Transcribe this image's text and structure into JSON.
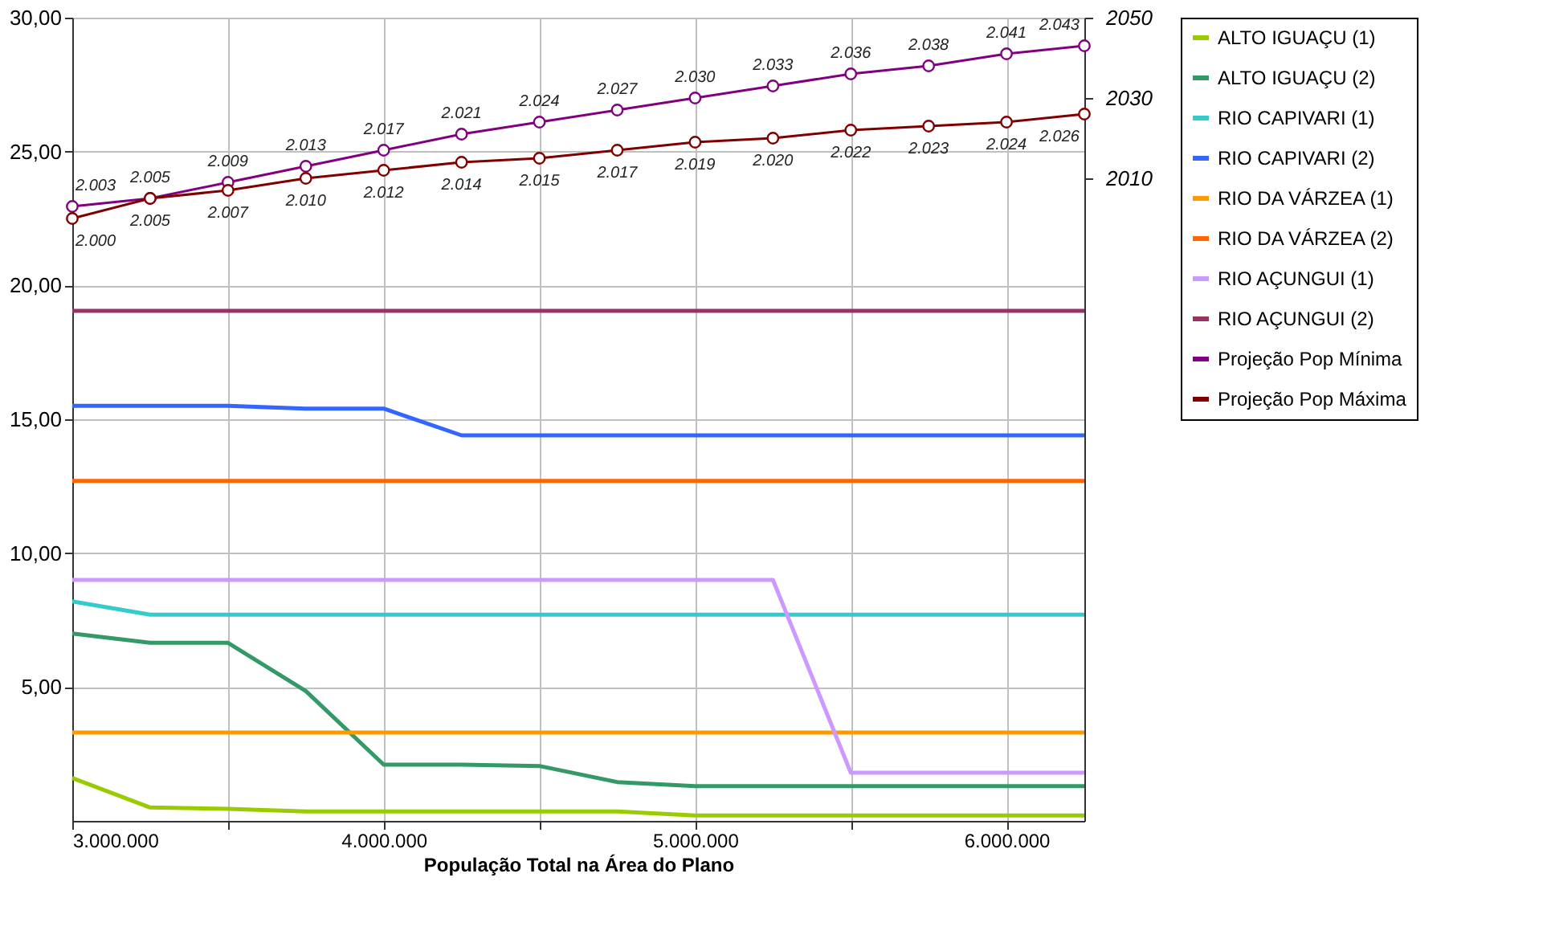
{
  "chart_data": {
    "type": "line",
    "xlabel": "População Total na Área do Plano",
    "x": [
      3000000,
      3250000,
      3500000,
      3750000,
      4000000,
      4250000,
      4500000,
      4750000,
      5000000,
      5250000,
      5500000,
      5750000,
      6000000,
      6250000
    ],
    "xlim": [
      3000000,
      6250000
    ],
    "xticks": [
      {
        "value": 3000000,
        "label": "3.000.000"
      },
      {
        "value": 3500000,
        "label": null
      },
      {
        "value": 4000000,
        "label": "4.000.000"
      },
      {
        "value": 4500000,
        "label": null
      },
      {
        "value": 5000000,
        "label": "5.000.000"
      },
      {
        "value": 5500000,
        "label": null
      },
      {
        "value": 6000000,
        "label": "6.000.000"
      }
    ],
    "ylim": [
      0,
      30
    ],
    "yticks": [
      {
        "value": 5,
        "label": "5,00"
      },
      {
        "value": 10,
        "label": "10,00"
      },
      {
        "value": 15,
        "label": "15,00"
      },
      {
        "value": 20,
        "label": "20,00"
      },
      {
        "value": 25,
        "label": "25,00"
      },
      {
        "value": 30,
        "label": "30,00"
      }
    ],
    "y2lim": [
      1850,
      2050
    ],
    "y2ticks": [
      2010,
      2030,
      2050
    ],
    "grid": true,
    "legend": "right",
    "series": [
      {
        "name": "ALTO IGUAÇU (1)",
        "color": "#99cc00",
        "values": [
          1.6,
          0.5,
          0.45,
          0.35,
          0.35,
          0.35,
          0.35,
          0.35,
          0.2,
          0.2,
          0.2,
          0.2,
          0.2,
          0.2
        ]
      },
      {
        "name": "ALTO IGUAÇU (2)",
        "color": "#339966",
        "values": [
          7.0,
          6.65,
          6.65,
          4.85,
          2.1,
          2.1,
          2.05,
          1.45,
          1.3,
          1.3,
          1.3,
          1.3,
          1.3,
          1.3
        ]
      },
      {
        "name": "RIO CAPIVARI (1)",
        "color": "#33cccc",
        "values": [
          8.2,
          7.7,
          7.7,
          7.7,
          7.7,
          7.7,
          7.7,
          7.7,
          7.7,
          7.7,
          7.7,
          7.7,
          7.7,
          7.7
        ]
      },
      {
        "name": "RIO CAPIVARI (2)",
        "color": "#3366ff",
        "values": [
          15.5,
          15.5,
          15.5,
          15.4,
          15.4,
          14.4,
          14.4,
          14.4,
          14.4,
          14.4,
          14.4,
          14.4,
          14.4,
          14.4
        ]
      },
      {
        "name": "RIO DA VÁRZEA (1)",
        "color": "#ff9900",
        "values": [
          3.3,
          3.3,
          3.3,
          3.3,
          3.3,
          3.3,
          3.3,
          3.3,
          3.3,
          3.3,
          3.3,
          3.3,
          3.3,
          3.3
        ]
      },
      {
        "name": "RIO DA VÁRZEA (2)",
        "color": "#ff6600",
        "values": [
          12.7,
          12.7,
          12.7,
          12.7,
          12.7,
          12.7,
          12.7,
          12.7,
          12.7,
          12.7,
          12.7,
          12.7,
          12.7,
          12.7
        ]
      },
      {
        "name": "RIO AÇUNGUI (1)",
        "color": "#cc99ff",
        "values": [
          9.0,
          9.0,
          9.0,
          9.0,
          9.0,
          9.0,
          9.0,
          9.0,
          9.0,
          9.0,
          1.8,
          1.8,
          1.8,
          1.8
        ]
      },
      {
        "name": "RIO AÇUNGUI (2)",
        "color": "#993366",
        "values": [
          19.05,
          19.05,
          19.05,
          19.05,
          19.05,
          19.05,
          19.05,
          19.05,
          19.05,
          19.05,
          19.05,
          19.05,
          19.05,
          19.05
        ]
      },
      {
        "name": "Projeção Pop Mínima",
        "color": "#800080",
        "axis": "y2",
        "marker": "circle",
        "values": [
          2003,
          2005,
          2009,
          2013,
          2017,
          2021,
          2024,
          2027,
          2030,
          2033,
          2036,
          2038,
          2041,
          2043
        ],
        "value_labels": [
          "2.003",
          "2.005",
          "2.009",
          "2.013",
          "2.017",
          "2.021",
          "2.024",
          "2.027",
          "2.030",
          "2.033",
          "2.036",
          "2.038",
          "2.041",
          "2.043"
        ]
      },
      {
        "name": "Projeção Pop Máxima",
        "color": "#800000",
        "axis": "y2",
        "marker": "circle",
        "values": [
          2000,
          2005,
          2007,
          2010,
          2012,
          2014,
          2015,
          2017,
          2019,
          2020,
          2022,
          2023,
          2024,
          2026
        ],
        "value_labels": [
          "2.000",
          "2.005",
          "2.007",
          "2.010",
          "2.012",
          "2.014",
          "2.015",
          "2.017",
          "2.019",
          "2.020",
          "2.022",
          "2.023",
          "2.024",
          "2.026"
        ]
      }
    ]
  }
}
